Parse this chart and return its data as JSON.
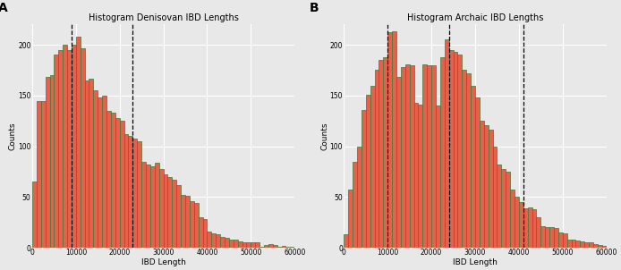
{
  "panel_a": {
    "title": "Histogram Denisovan IBD Lengths",
    "xlabel": "IBD Length",
    "ylabel": "Counts",
    "label": "A",
    "vlines": [
      9000,
      23000
    ],
    "bar_values": [
      65,
      145,
      145,
      168,
      170,
      190,
      195,
      200,
      195,
      200,
      208,
      197,
      165,
      167,
      155,
      148,
      150,
      135,
      133,
      128,
      125,
      112,
      110,
      108,
      105,
      85,
      82,
      80,
      84,
      78,
      72,
      70,
      67,
      62,
      52,
      51,
      46,
      44,
      30,
      28,
      16,
      14,
      13,
      11,
      10,
      8,
      8,
      6,
      5,
      5,
      5,
      5,
      1,
      3,
      4,
      3,
      1,
      2,
      1,
      1
    ],
    "bin_width": 1000,
    "xlim": [
      0,
      60000
    ],
    "ylim": [
      0,
      220
    ]
  },
  "panel_b": {
    "title": "Histogram Archaic IBD Lengths",
    "xlabel": "IBD Length",
    "ylabel": "Counts",
    "label": "B",
    "vlines": [
      10000,
      24000,
      41000
    ],
    "bar_values": [
      13,
      57,
      85,
      100,
      136,
      151,
      160,
      175,
      185,
      188,
      212,
      213,
      168,
      178,
      181,
      180,
      143,
      141,
      181,
      180,
      180,
      140,
      188,
      205,
      195,
      193,
      190,
      175,
      172,
      160,
      148,
      125,
      121,
      116,
      100,
      82,
      78,
      75,
      57,
      50,
      45,
      39,
      40,
      38,
      30,
      21,
      20,
      20,
      19,
      15,
      14,
      8,
      8,
      7,
      6,
      5,
      5,
      4,
      3,
      2
    ],
    "bin_width": 1000,
    "xlim": [
      0,
      60000
    ],
    "ylim": [
      0,
      220
    ]
  },
  "bar_color": "#E8604A",
  "bar_edge_color": "#3a7a3a",
  "background_color": "#E8E8E8",
  "grid_color": "#FFFFFF",
  "dashed_line_color": "black",
  "yticks": [
    0,
    50,
    100,
    150,
    200
  ],
  "xticks": [
    0,
    10000,
    20000,
    30000,
    40000,
    50000,
    60000
  ],
  "xtick_labels": [
    "0",
    "10000",
    "20000",
    "30000",
    "40000",
    "50000",
    "60000"
  ],
  "ytick_labels": [
    "0",
    "50",
    "100",
    "150",
    "200"
  ]
}
